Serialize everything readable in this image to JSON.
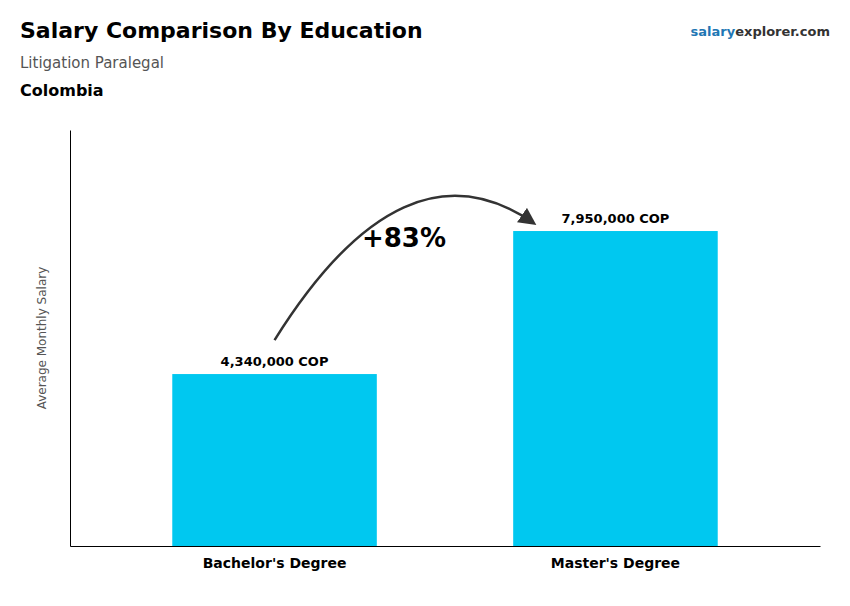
{
  "chart_data": {
    "type": "bar",
    "title": "Salary Comparison By Education",
    "subtitle": "Litigation Paralegal",
    "annotations": [
      {
        "text": "Colombia"
      },
      {
        "text": "+83%"
      },
      {
        "text": "salary"
      },
      {
        "text": "explorer.com"
      }
    ],
    "ylabel": "Average Monthly Salary",
    "categories": [
      "Bachelor's Degree",
      "Master's Degree"
    ],
    "values": [
      4340000,
      7950000
    ],
    "value_labels": [
      "4,340,000 COP",
      "7,950,000 COP"
    ],
    "data_labels": true,
    "color": "#00c8f0",
    "ylim": [
      0,
      10500000
    ],
    "tick_labels": "x",
    "grid": false
  }
}
